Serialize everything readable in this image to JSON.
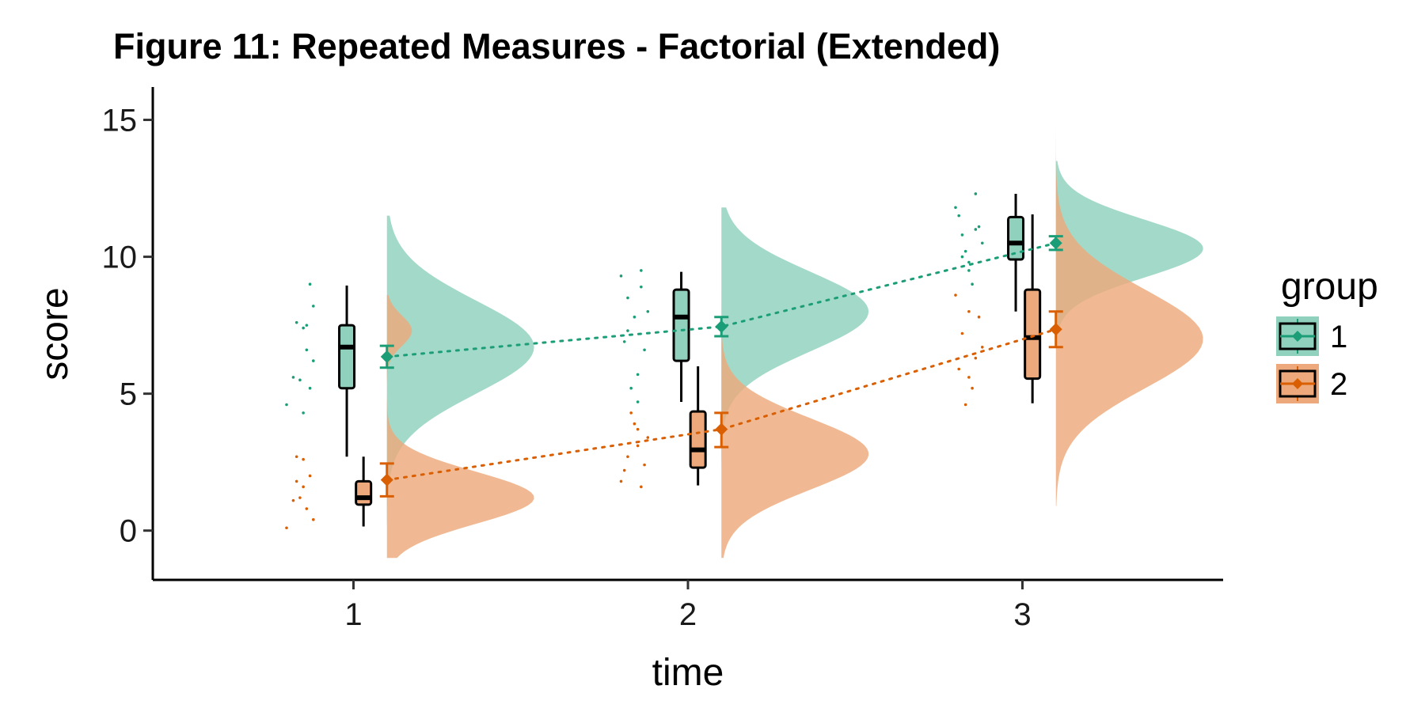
{
  "chart_data": {
    "type": "raincloud",
    "title": "Figure 11: Repeated Measures - Factorial (Extended)",
    "xlabel": "time",
    "ylabel": "score",
    "categories": [
      "1",
      "2",
      "3"
    ],
    "ylim": [
      -1.8,
      16.2
    ],
    "yticks": [
      0,
      5,
      10,
      15
    ],
    "grid": false,
    "legend": {
      "title": "group",
      "position": "right"
    },
    "series": [
      {
        "name": "1",
        "color": "#1b9e77",
        "fill": "#8fd1bc",
        "means": [
          6.35,
          7.45,
          10.5
        ],
        "mean_ci": [
          [
            5.95,
            6.75
          ],
          [
            7.1,
            7.8
          ],
          [
            10.25,
            10.75
          ]
        ],
        "box": [
          {
            "min": 2.7,
            "q1": 5.2,
            "median": 6.7,
            "q3": 7.5,
            "max": 8.95
          },
          {
            "min": 4.7,
            "q1": 6.2,
            "median": 7.8,
            "q3": 8.8,
            "max": 9.45
          },
          {
            "min": 8.0,
            "q1": 9.9,
            "median": 10.5,
            "q3": 11.45,
            "max": 12.3
          }
        ],
        "density": [
          {
            "min": 0.2,
            "max": 11.5,
            "peaks": [
              [
                6.7,
                1.0,
                1.7
              ]
            ]
          },
          {
            "min": 2.3,
            "max": 11.8,
            "peaks": [
              [
                8.0,
                1.0,
                1.45
              ]
            ]
          },
          {
            "min": 7.0,
            "max": 13.5,
            "peaks": [
              [
                10.3,
                1.0,
                1.05
              ]
            ]
          }
        ],
        "points": [
          [
            [
              0.8,
              4.6
            ],
            [
              0.82,
              5.6
            ],
            [
              0.84,
              5.5
            ],
            [
              0.83,
              7.6
            ],
            [
              0.85,
              7.4
            ],
            [
              0.86,
              6.6
            ],
            [
              0.87,
              9.0
            ],
            [
              0.88,
              8.2
            ],
            [
              0.87,
              5.2
            ],
            [
              0.85,
              4.3
            ],
            [
              0.88,
              6.2
            ],
            [
              0.86,
              7.5
            ]
          ],
          [
            [
              1.8,
              9.3
            ],
            [
              1.82,
              8.5
            ],
            [
              1.84,
              7.8
            ],
            [
              1.81,
              6.9
            ],
            [
              1.85,
              5.7
            ],
            [
              1.83,
              5.2
            ],
            [
              1.86,
              9.5
            ],
            [
              1.88,
              8.0
            ],
            [
              1.87,
              6.6
            ],
            [
              1.85,
              4.7
            ],
            [
              1.82,
              7.3
            ],
            [
              1.86,
              8.9
            ]
          ],
          [
            [
              2.8,
              11.8
            ],
            [
              2.82,
              10.8
            ],
            [
              2.84,
              9.8
            ],
            [
              2.86,
              12.3
            ],
            [
              2.83,
              10.2
            ],
            [
              2.85,
              9.0
            ],
            [
              2.87,
              11.1
            ],
            [
              2.88,
              10.5
            ],
            [
              2.81,
              11.5
            ],
            [
              2.84,
              9.5
            ],
            [
              2.86,
              11.0
            ],
            [
              2.82,
              10.0
            ]
          ]
        ]
      },
      {
        "name": "2",
        "color": "#d95f02",
        "fill": "#eda97b",
        "means": [
          1.85,
          3.7,
          7.35
        ],
        "mean_ci": [
          [
            1.25,
            2.45
          ],
          [
            3.05,
            4.3
          ],
          [
            6.7,
            8.0
          ]
        ],
        "box": [
          {
            "min": 0.15,
            "q1": 0.95,
            "median": 1.2,
            "q3": 1.8,
            "max": 2.7
          },
          {
            "min": 1.65,
            "q1": 2.3,
            "median": 2.95,
            "q3": 4.35,
            "max": 6.0
          },
          {
            "min": 4.65,
            "q1": 5.55,
            "median": 7.05,
            "q3": 8.8,
            "max": 11.55
          }
        ],
        "density": [
          {
            "min": -1.0,
            "max": 8.6,
            "peaks": [
              [
                1.2,
                1.0,
                0.95
              ],
              [
                7.3,
                0.17,
                0.55
              ]
            ]
          },
          {
            "min": -1.0,
            "max": 9.0,
            "peaks": [
              [
                2.8,
                0.95,
                1.3
              ]
            ]
          },
          {
            "min": 0.9,
            "max": 15.4,
            "peaks": [
              [
                7.0,
                1.0,
                1.8
              ]
            ]
          }
        ],
        "points": [
          [
            [
              0.8,
              0.1
            ],
            [
              0.82,
              1.1
            ],
            [
              0.83,
              2.7
            ],
            [
              0.84,
              1.2
            ],
            [
              0.86,
              0.8
            ],
            [
              0.85,
              1.6
            ],
            [
              0.87,
              2.0
            ],
            [
              0.88,
              0.4
            ],
            [
              0.85,
              2.6
            ],
            [
              0.83,
              1.8
            ]
          ],
          [
            [
              1.8,
              1.8
            ],
            [
              1.82,
              2.7
            ],
            [
              1.84,
              3.9
            ],
            [
              1.86,
              1.6
            ],
            [
              1.85,
              3.1
            ],
            [
              1.83,
              4.3
            ],
            [
              1.87,
              2.4
            ],
            [
              1.88,
              3.4
            ],
            [
              1.81,
              2.2
            ],
            [
              1.85,
              3.7
            ]
          ],
          [
            [
              2.8,
              8.6
            ],
            [
              2.82,
              7.2
            ],
            [
              2.84,
              5.6
            ],
            [
              2.83,
              4.6
            ],
            [
              2.86,
              6.3
            ],
            [
              2.85,
              5.2
            ],
            [
              2.87,
              7.8
            ],
            [
              2.88,
              6.7
            ],
            [
              2.81,
              5.9
            ],
            [
              2.84,
              8.0
            ]
          ]
        ]
      }
    ]
  }
}
